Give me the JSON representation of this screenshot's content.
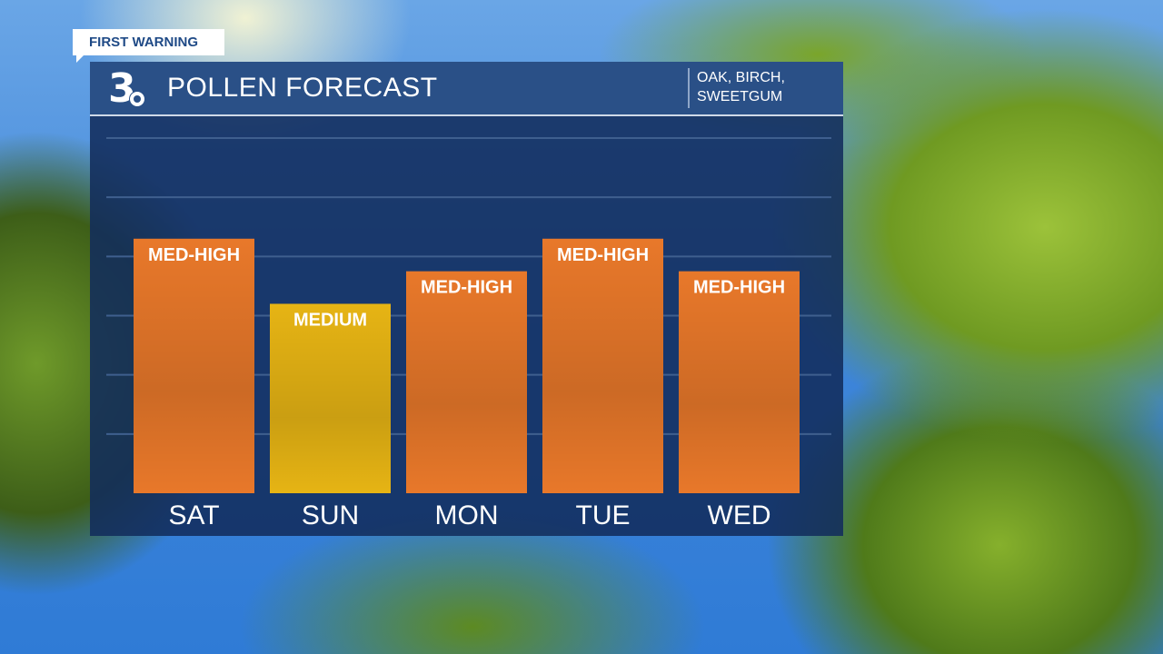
{
  "badge": "FIRST WARNING",
  "header": {
    "logo": "3",
    "title": "POLLEN FORECAST",
    "subtitle_line1": "OAK, BIRCH,",
    "subtitle_line2": "SWEETGUM"
  },
  "chart_data": {
    "type": "bar",
    "title": "POLLEN FORECAST",
    "categories": [
      "SAT",
      "SUN",
      "MON",
      "TUE",
      "WED"
    ],
    "values": [
      8.6,
      6.4,
      7.5,
      8.6,
      7.5
    ],
    "labels": [
      "MED-HIGH",
      "MEDIUM",
      "MED-HIGH",
      "MED-HIGH",
      "MED-HIGH"
    ],
    "colors": [
      "#e8782a",
      "#e6b414",
      "#e8782a",
      "#e8782a",
      "#e8782a"
    ],
    "ylim": [
      0,
      12
    ],
    "grid": true,
    "legend": "none"
  }
}
